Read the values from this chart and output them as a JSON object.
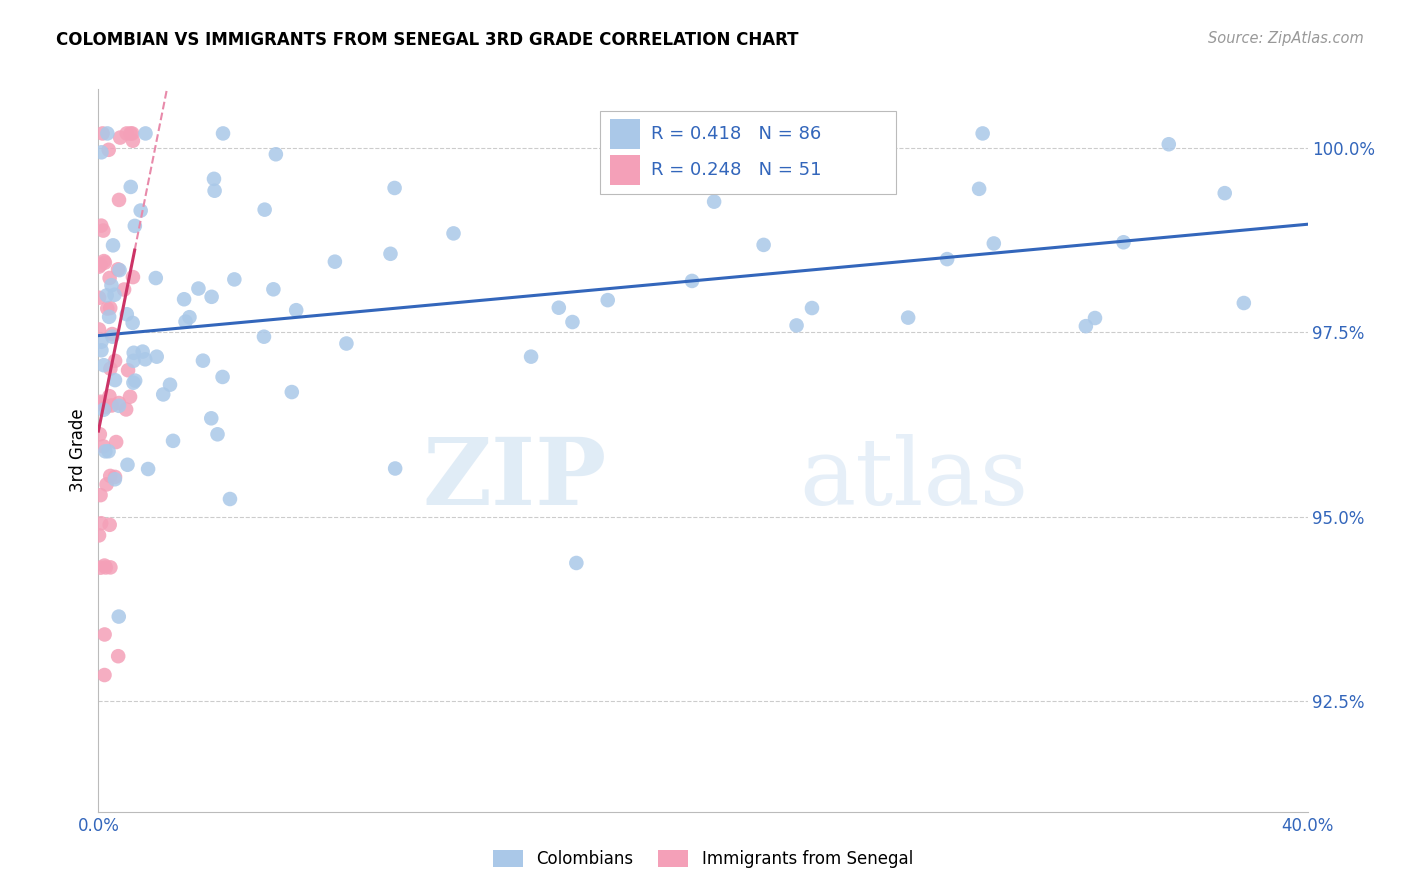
{
  "title": "COLOMBIAN VS IMMIGRANTS FROM SENEGAL 3RD GRADE CORRELATION CHART",
  "source": "Source: ZipAtlas.com",
  "ylabel": "3rd Grade",
  "ytick_labels": [
    "92.5%",
    "95.0%",
    "97.5%",
    "100.0%"
  ],
  "ytick_values": [
    0.925,
    0.95,
    0.975,
    1.0
  ],
  "xmin": 0.0,
  "xmax": 0.4,
  "ymin": 0.91,
  "ymax": 1.008,
  "blue_R": 0.418,
  "blue_N": 86,
  "pink_R": 0.248,
  "pink_N": 51,
  "blue_color": "#aac8e8",
  "blue_line_color": "#3366bb",
  "pink_color": "#f4a0b8",
  "pink_line_color": "#cc3366",
  "pink_dash_color": "#e88aaa",
  "background_color": "#ffffff",
  "watermark_zip": "ZIP",
  "watermark_atlas": "atlas",
  "legend_R_color": "#3366bb",
  "legend_N_color": "#22aa22"
}
